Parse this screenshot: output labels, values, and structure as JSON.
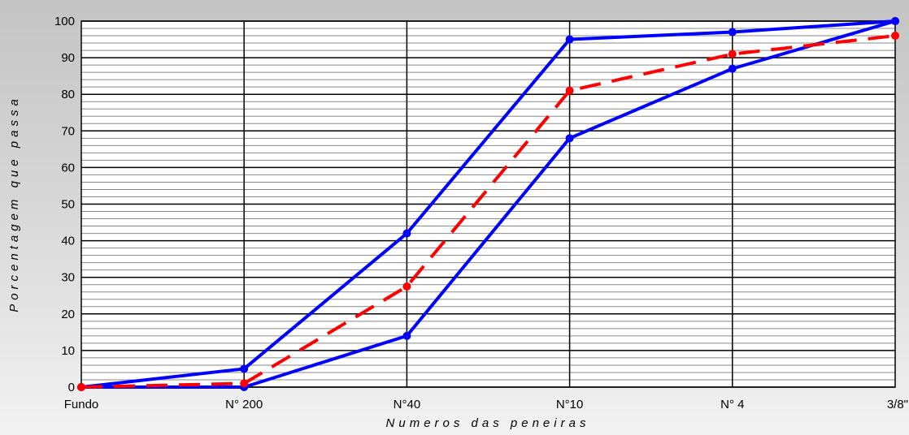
{
  "chart_data": {
    "type": "line",
    "title": "",
    "xlabel": "Numeros das peneiras",
    "ylabel": "Porcentagem que passa",
    "categories": [
      "Fundo",
      "N° 200",
      "N°40",
      "N°10",
      "N° 4",
      "3/8\""
    ],
    "yticks": [
      "0",
      "10",
      "20",
      "30",
      "40",
      "50",
      "60",
      "70",
      "80",
      "90",
      "100"
    ],
    "ylim": [
      0,
      100
    ],
    "grid": true,
    "minor_grid_step": 2,
    "series": [
      {
        "color": "#0000ff",
        "style": "solid",
        "values": [
          0,
          5,
          42,
          95,
          97,
          100
        ]
      },
      {
        "color": "#0000ff",
        "style": "solid",
        "values": [
          0,
          0,
          14,
          68,
          87,
          100
        ]
      },
      {
        "color": "#ff0000",
        "style": "dashed",
        "values": [
          0,
          1,
          27.5,
          81,
          91,
          96
        ]
      }
    ]
  }
}
